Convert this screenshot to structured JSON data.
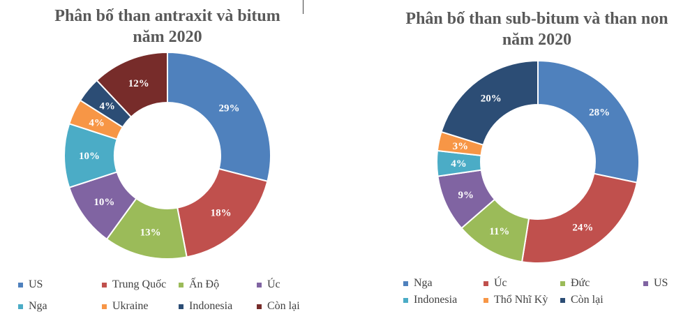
{
  "colors": [
    "#4F81BD",
    "#C0504D",
    "#9BBB59",
    "#8064A2",
    "#4BACC6",
    "#F79646",
    "#2C4D75",
    "#772C2A"
  ],
  "chart_data": [
    {
      "type": "pie",
      "donut": true,
      "title": "Phân bố than antraxit và bitum năm 2020",
      "title_lines": [
        "Phân bố than antraxit và bitum",
        "năm 2020"
      ],
      "categories": [
        "US",
        "Trung Quốc",
        "Ấn Độ",
        "Úc",
        "Nga",
        "Ukraine",
        "Indonesia",
        "Còn lại"
      ],
      "values": [
        29,
        18,
        13,
        10,
        10,
        4,
        4,
        12
      ],
      "data_labels": [
        "29%",
        "18%",
        "13%",
        "10%",
        "10%",
        "4%",
        "4%",
        "12%"
      ],
      "colors": [
        "#4F81BD",
        "#C0504D",
        "#9BBB59",
        "#8064A2",
        "#4BACC6",
        "#F79646",
        "#2C4D75",
        "#772C2A"
      ],
      "legend": "bottom"
    },
    {
      "type": "pie",
      "donut": true,
      "title": "Phân bố than sub-bitum và than non năm 2020",
      "title_lines": [
        "Phân bố than sub-bitum và than non",
        "năm 2020"
      ],
      "categories": [
        "Nga",
        "Úc",
        "Đức",
        "US",
        "Indonesia",
        "Thổ Nhĩ Kỳ",
        "Còn lại"
      ],
      "values": [
        28,
        24,
        11,
        9,
        4,
        3,
        20
      ],
      "data_labels": [
        "28%",
        "24%",
        "11%",
        "9%",
        "4%",
        "3%",
        "20%"
      ],
      "colors": [
        "#4F81BD",
        "#C0504D",
        "#9BBB59",
        "#8064A2",
        "#4BACC6",
        "#F79646",
        "#2C4D75"
      ],
      "legend": "bottom"
    }
  ]
}
